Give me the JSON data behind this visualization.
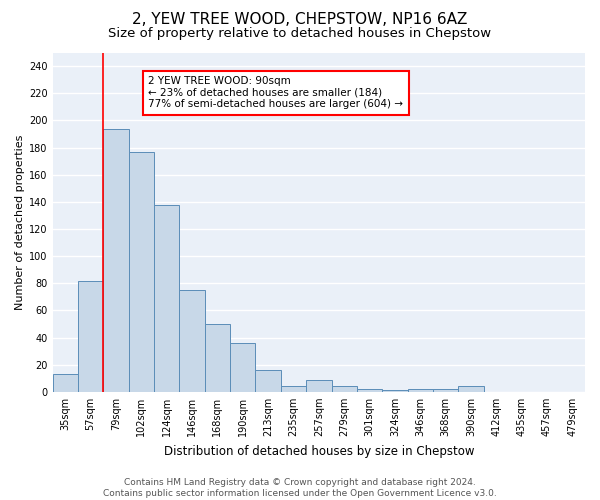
{
  "title": "2, YEW TREE WOOD, CHEPSTOW, NP16 6AZ",
  "subtitle": "Size of property relative to detached houses in Chepstow",
  "xlabel": "Distribution of detached houses by size in Chepstow",
  "ylabel": "Number of detached properties",
  "bar_values": [
    13,
    82,
    194,
    177,
    138,
    75,
    50,
    36,
    16,
    4,
    9,
    4,
    2,
    1,
    2,
    2,
    4,
    0,
    0,
    0
  ],
  "bar_labels": [
    "35sqm",
    "57sqm",
    "79sqm",
    "102sqm",
    "124sqm",
    "146sqm",
    "168sqm",
    "190sqm",
    "213sqm",
    "235sqm",
    "257sqm",
    "279sqm",
    "301sqm",
    "324sqm",
    "346sqm",
    "368sqm",
    "390sqm",
    "412sqm",
    "435sqm",
    "457sqm",
    "479sqm"
  ],
  "bar_color": "#c8d8e8",
  "bar_edge_color": "#5b8db8",
  "red_line_x": 2,
  "annotation_text": "2 YEW TREE WOOD: 90sqm\n← 23% of detached houses are smaller (184)\n77% of semi-detached houses are larger (604) →",
  "annotation_box_color": "white",
  "annotation_box_edge_color": "red",
  "ylim": [
    0,
    250
  ],
  "yticks": [
    0,
    20,
    40,
    60,
    80,
    100,
    120,
    140,
    160,
    180,
    200,
    220,
    240
  ],
  "background_color": "#eaf0f8",
  "grid_color": "white",
  "footer_text": "Contains HM Land Registry data © Crown copyright and database right 2024.\nContains public sector information licensed under the Open Government Licence v3.0.",
  "title_fontsize": 11,
  "subtitle_fontsize": 9.5,
  "xlabel_fontsize": 8.5,
  "ylabel_fontsize": 8,
  "tick_fontsize": 7,
  "footer_fontsize": 6.5,
  "annotation_fontsize": 7.5
}
